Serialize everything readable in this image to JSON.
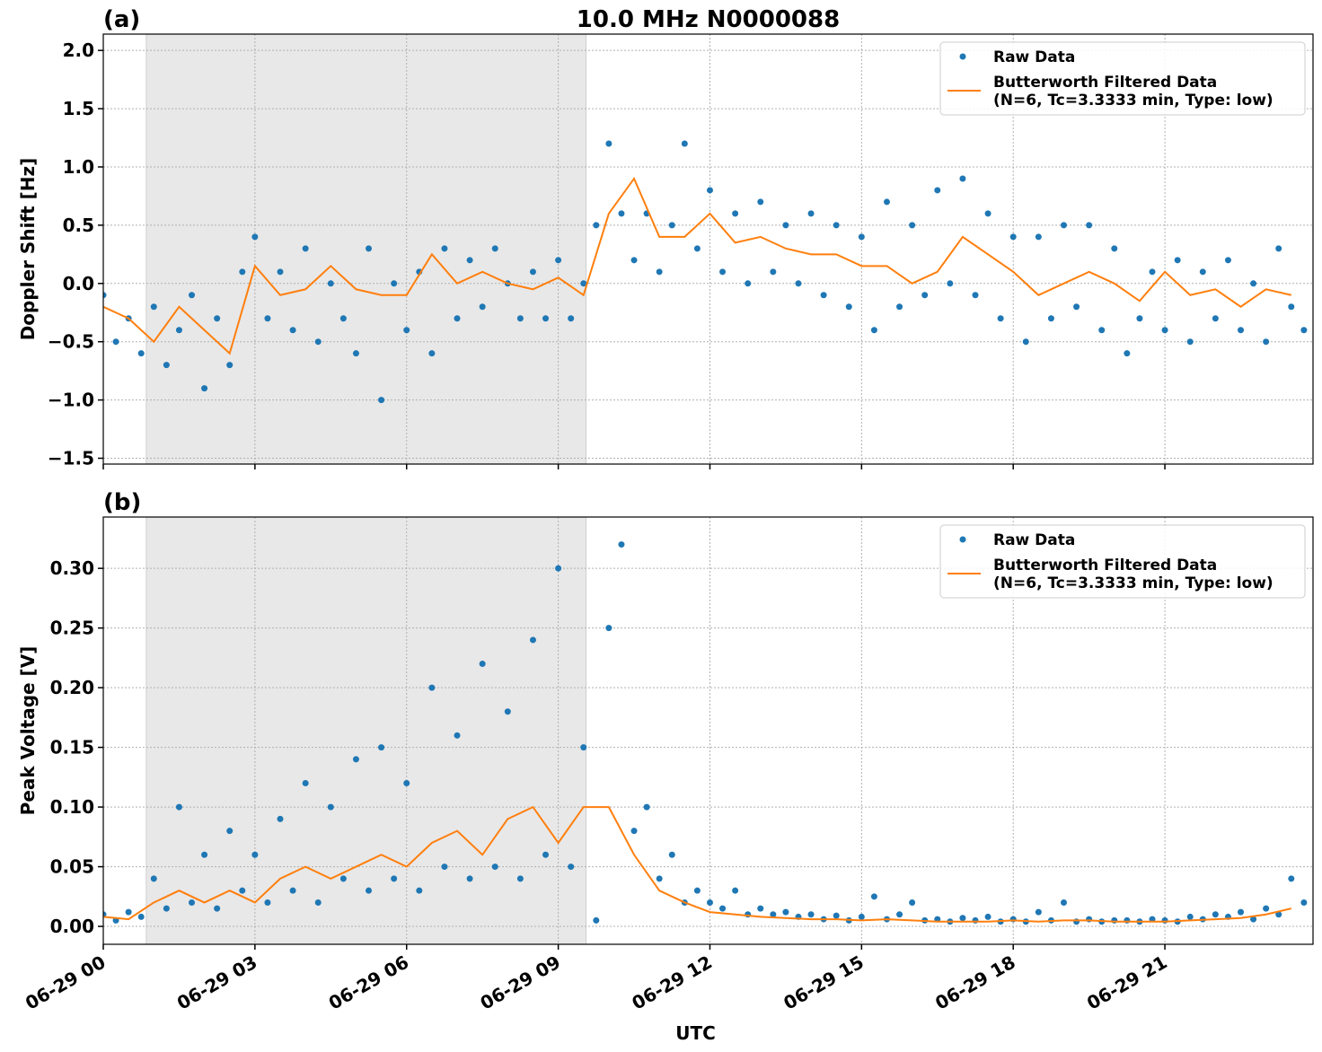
{
  "chart_data": [
    {
      "type": "line",
      "label": "(a)",
      "title": "10.0 MHz N0000088",
      "ylabel": "Doppler Shift [Hz]",
      "xlim": [
        0,
        23.93
      ],
      "ylim": [
        -1.55,
        2.14
      ],
      "grid": true,
      "legend": "upper right",
      "shaded_span": [
        0.85,
        9.55
      ],
      "show_xtick_labels": false,
      "xticks": [
        {
          "value": 0,
          "label": "06-29 00"
        },
        {
          "value": 3,
          "label": "06-29 03"
        },
        {
          "value": 6,
          "label": "06-29 06"
        },
        {
          "value": 9,
          "label": "06-29 09"
        },
        {
          "value": 12,
          "label": "06-29 12"
        },
        {
          "value": 15,
          "label": "06-29 15"
        },
        {
          "value": 18,
          "label": "06-29 18"
        },
        {
          "value": 21,
          "label": "06-29 21"
        }
      ],
      "yticks": [
        {
          "value": -1.5,
          "label": "−1.5"
        },
        {
          "value": -1.0,
          "label": "−1.0"
        },
        {
          "value": -0.5,
          "label": "−0.5"
        },
        {
          "value": 0,
          "label": "0.0"
        },
        0.5,
        {
          "value": 1.0,
          "label": "1.0"
        },
        1.5,
        {
          "value": 2.0,
          "label": "2.0"
        }
      ],
      "series": [
        {
          "name": [
            "Raw Data"
          ],
          "style": "markers",
          "color": "#1f77b4",
          "x": [
            0,
            0.25,
            0.5,
            0.75,
            1,
            1.25,
            1.5,
            1.75,
            2,
            2.25,
            2.5,
            2.75,
            3,
            3.25,
            3.5,
            3.75,
            4,
            4.25,
            4.5,
            4.75,
            5,
            5.25,
            5.5,
            5.75,
            6,
            6.25,
            6.5,
            6.75,
            7,
            7.25,
            7.5,
            7.75,
            8,
            8.25,
            8.5,
            8.75,
            9,
            9.25,
            9.5,
            9.75,
            10,
            10.25,
            10.5,
            10.75,
            11,
            11.25,
            11.5,
            11.75,
            12,
            12.25,
            12.5,
            12.75,
            13,
            13.25,
            13.5,
            13.75,
            14,
            14.25,
            14.5,
            14.75,
            15,
            15.25,
            15.5,
            15.75,
            16,
            16.25,
            16.5,
            16.75,
            17,
            17.25,
            17.5,
            17.75,
            18,
            18.25,
            18.5,
            18.75,
            19,
            19.25,
            19.5,
            19.75,
            20,
            20.25,
            20.5,
            20.75,
            21,
            21.25,
            21.5,
            21.75,
            22,
            22.25,
            22.5,
            22.75,
            23,
            23.25,
            23.5,
            23.75
          ],
          "values": [
            -0.1,
            -0.5,
            -0.3,
            -0.6,
            -0.2,
            -0.7,
            -0.4,
            -0.1,
            -0.9,
            -0.3,
            -0.7,
            0.1,
            0.4,
            -0.3,
            0.1,
            -0.4,
            0.3,
            -0.5,
            0.0,
            -0.3,
            -0.6,
            0.3,
            -1.0,
            0.0,
            -0.4,
            0.1,
            -0.6,
            0.3,
            -0.3,
            0.2,
            -0.2,
            0.3,
            0.0,
            -0.3,
            0.1,
            -0.3,
            0.2,
            -0.3,
            0.0,
            0.5,
            1.2,
            0.6,
            0.2,
            0.6,
            0.1,
            0.5,
            1.2,
            0.3,
            0.8,
            0.1,
            0.6,
            0.0,
            0.7,
            0.1,
            0.5,
            0.0,
            0.6,
            -0.1,
            0.5,
            -0.2,
            0.4,
            -0.4,
            0.7,
            -0.2,
            0.5,
            -0.1,
            0.8,
            0.0,
            0.9,
            -0.1,
            0.6,
            -0.3,
            0.4,
            -0.5,
            0.4,
            -0.3,
            0.5,
            -0.2,
            0.5,
            -0.4,
            0.3,
            -0.6,
            -0.3,
            0.1,
            -0.4,
            0.2,
            -0.5,
            0.1,
            -0.3,
            0.2,
            -0.4,
            0.0,
            -0.5,
            0.3,
            -0.2,
            -0.4
          ]
        },
        {
          "name": [
            "Butterworth Filtered Data",
            "(N=6, Tc=3.3333 min, Type: low)"
          ],
          "style": "line",
          "color": "#ff7f0e",
          "x": [
            0,
            0.5,
            1,
            1.5,
            2,
            2.5,
            3,
            3.5,
            4,
            4.5,
            5,
            5.5,
            6,
            6.5,
            7,
            7.5,
            8,
            8.5,
            9,
            9.5,
            10,
            10.5,
            11,
            11.5,
            12,
            12.5,
            13,
            13.5,
            14,
            14.5,
            15,
            15.5,
            16,
            16.5,
            17,
            17.5,
            18,
            18.5,
            19,
            19.5,
            20,
            20.5,
            21,
            21.5,
            22,
            22.5,
            23,
            23.5
          ],
          "values": [
            -0.2,
            -0.3,
            -0.5,
            -0.2,
            -0.4,
            -0.6,
            0.15,
            -0.1,
            -0.05,
            0.15,
            -0.05,
            -0.1,
            -0.1,
            0.25,
            0.0,
            0.1,
            0.0,
            -0.05,
            0.05,
            -0.1,
            0.6,
            0.9,
            0.4,
            0.4,
            0.6,
            0.35,
            0.4,
            0.3,
            0.25,
            0.25,
            0.15,
            0.15,
            0.0,
            0.1,
            0.4,
            0.25,
            0.1,
            -0.1,
            0.0,
            0.1,
            0.0,
            -0.15,
            0.1,
            -0.1,
            -0.05,
            -0.2,
            -0.05,
            -0.1
          ]
        }
      ]
    },
    {
      "type": "line",
      "label": "(b)",
      "ylabel": "Peak Voltage [V]",
      "xlabel": "UTC",
      "xlim": [
        0,
        23.93
      ],
      "ylim": [
        -0.015,
        0.343
      ],
      "grid": true,
      "legend": "upper right",
      "shaded_span": [
        0.85,
        9.55
      ],
      "show_xtick_labels": true,
      "xticks": [
        {
          "value": 0,
          "label": "06-29 00"
        },
        {
          "value": 3,
          "label": "06-29 03"
        },
        {
          "value": 6,
          "label": "06-29 06"
        },
        {
          "value": 9,
          "label": "06-29 09"
        },
        {
          "value": 12,
          "label": "06-29 12"
        },
        {
          "value": 15,
          "label": "06-29 15"
        },
        {
          "value": 18,
          "label": "06-29 18"
        },
        {
          "value": 21,
          "label": "06-29 21"
        }
      ],
      "yticks": [
        {
          "value": 0,
          "label": "0.00"
        },
        0.05,
        {
          "value": 0.1,
          "label": "0.10"
        },
        0.15,
        {
          "value": 0.2,
          "label": "0.20"
        },
        0.25,
        {
          "value": 0.3,
          "label": "0.30"
        }
      ],
      "series": [
        {
          "name": [
            "Raw Data"
          ],
          "style": "markers",
          "color": "#1f77b4",
          "x": [
            0,
            0.25,
            0.5,
            0.75,
            1,
            1.25,
            1.5,
            1.75,
            2,
            2.25,
            2.5,
            2.75,
            3,
            3.25,
            3.5,
            3.75,
            4,
            4.25,
            4.5,
            4.75,
            5,
            5.25,
            5.5,
            5.75,
            6,
            6.25,
            6.5,
            6.75,
            7,
            7.25,
            7.5,
            7.75,
            8,
            8.25,
            8.5,
            8.75,
            9,
            9.25,
            9.5,
            9.75,
            10,
            10.25,
            10.5,
            10.75,
            11,
            11.25,
            11.5,
            11.75,
            12,
            12.25,
            12.5,
            12.75,
            13,
            13.25,
            13.5,
            13.75,
            14,
            14.25,
            14.5,
            14.75,
            15,
            15.25,
            15.5,
            15.75,
            16,
            16.25,
            16.5,
            16.75,
            17,
            17.25,
            17.5,
            17.75,
            18,
            18.25,
            18.5,
            18.75,
            19,
            19.25,
            19.5,
            19.75,
            20,
            20.25,
            20.5,
            20.75,
            21,
            21.25,
            21.5,
            21.75,
            22,
            22.25,
            22.5,
            22.75,
            23,
            23.25,
            23.5,
            23.75
          ],
          "values": [
            0.01,
            0.005,
            0.012,
            0.008,
            0.04,
            0.015,
            0.1,
            0.02,
            0.06,
            0.015,
            0.08,
            0.03,
            0.06,
            0.02,
            0.09,
            0.03,
            0.12,
            0.02,
            0.1,
            0.04,
            0.14,
            0.03,
            0.15,
            0.04,
            0.12,
            0.03,
            0.2,
            0.05,
            0.16,
            0.04,
            0.22,
            0.05,
            0.18,
            0.04,
            0.24,
            0.06,
            0.3,
            0.05,
            0.15,
            0.005,
            0.25,
            0.32,
            0.08,
            0.1,
            0.04,
            0.06,
            0.02,
            0.03,
            0.02,
            0.015,
            0.03,
            0.01,
            0.015,
            0.01,
            0.012,
            0.008,
            0.01,
            0.006,
            0.009,
            0.005,
            0.008,
            0.025,
            0.006,
            0.01,
            0.02,
            0.005,
            0.006,
            0.004,
            0.007,
            0.005,
            0.008,
            0.004,
            0.006,
            0.004,
            0.012,
            0.005,
            0.02,
            0.004,
            0.006,
            0.004,
            0.005,
            0.005,
            0.004,
            0.006,
            0.005,
            0.004,
            0.008,
            0.006,
            0.01,
            0.008,
            0.012,
            0.006,
            0.015,
            0.01,
            0.04,
            0.02
          ]
        },
        {
          "name": [
            "Butterworth Filtered Data",
            "(N=6, Tc=3.3333 min, Type: low)"
          ],
          "style": "line",
          "color": "#ff7f0e",
          "x": [
            0,
            0.5,
            1,
            1.5,
            2,
            2.5,
            3,
            3.5,
            4,
            4.5,
            5,
            5.5,
            6,
            6.5,
            7,
            7.5,
            8,
            8.5,
            9,
            9.5,
            10,
            10.5,
            11,
            11.5,
            12,
            12.5,
            13,
            13.5,
            14,
            14.5,
            15,
            15.5,
            16,
            16.5,
            17,
            17.5,
            18,
            18.5,
            19,
            19.5,
            20,
            20.5,
            21,
            21.5,
            22,
            22.5,
            23,
            23.5
          ],
          "values": [
            0.008,
            0.006,
            0.02,
            0.03,
            0.02,
            0.03,
            0.02,
            0.04,
            0.05,
            0.04,
            0.05,
            0.06,
            0.05,
            0.07,
            0.08,
            0.06,
            0.09,
            0.1,
            0.07,
            0.1,
            0.1,
            0.06,
            0.03,
            0.02,
            0.012,
            0.01,
            0.008,
            0.007,
            0.006,
            0.006,
            0.005,
            0.006,
            0.005,
            0.004,
            0.004,
            0.004,
            0.005,
            0.004,
            0.005,
            0.005,
            0.004,
            0.004,
            0.004,
            0.005,
            0.006,
            0.007,
            0.01,
            0.015
          ]
        }
      ]
    }
  ]
}
